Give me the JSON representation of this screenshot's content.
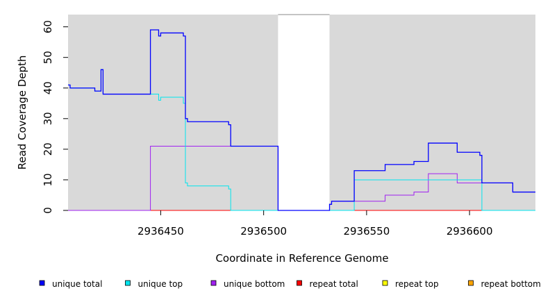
{
  "chart_data": {
    "type": "line",
    "xlabel": "Coordinate in Reference Genome",
    "ylabel": "Read Coverage Depth",
    "xlim": [
      2936405,
      2936632
    ],
    "ylim": [
      0,
      64
    ],
    "x_ticks": [
      2936450,
      2936500,
      2936550,
      2936600
    ],
    "y_ticks": [
      0,
      10,
      20,
      30,
      40,
      50,
      60
    ],
    "gap_region": [
      2936507,
      2936532
    ],
    "grid": false,
    "legend_position": "bottom",
    "series": [
      {
        "name": "unique total",
        "color": "#0000ff",
        "points": [
          [
            2936405,
            41
          ],
          [
            2936406,
            40
          ],
          [
            2936418,
            39
          ],
          [
            2936421,
            46
          ],
          [
            2936422,
            38
          ],
          [
            2936445,
            59
          ],
          [
            2936449,
            57
          ],
          [
            2936450,
            58
          ],
          [
            2936461,
            57
          ],
          [
            2936462,
            30
          ],
          [
            2936463,
            29
          ],
          [
            2936483,
            28
          ],
          [
            2936484,
            21
          ],
          [
            2936507,
            0
          ],
          [
            2936532,
            2
          ],
          [
            2936533,
            3
          ],
          [
            2936544,
            13
          ],
          [
            2936559,
            15
          ],
          [
            2936573,
            16
          ],
          [
            2936580,
            22
          ],
          [
            2936594,
            19
          ],
          [
            2936605,
            18
          ],
          [
            2936606,
            9
          ],
          [
            2936621,
            6
          ],
          [
            2936632,
            6
          ]
        ]
      },
      {
        "name": "unique top",
        "color": "#00e5ee",
        "points": [
          [
            2936405,
            41
          ],
          [
            2936406,
            40
          ],
          [
            2936418,
            39
          ],
          [
            2936421,
            46
          ],
          [
            2936422,
            38
          ],
          [
            2936444,
            38
          ],
          [
            2936449,
            36
          ],
          [
            2936450,
            37
          ],
          [
            2936461,
            35
          ],
          [
            2936462,
            9
          ],
          [
            2936463,
            8
          ],
          [
            2936483,
            7
          ],
          [
            2936484,
            0
          ],
          [
            2936544,
            10
          ],
          [
            2936606,
            0
          ],
          [
            2936632,
            0
          ]
        ]
      },
      {
        "name": "unique bottom",
        "color": "#a020f0",
        "points": [
          [
            2936405,
            0
          ],
          [
            2936445,
            21
          ],
          [
            2936507,
            0
          ],
          [
            2936532,
            2
          ],
          [
            2936533,
            3
          ],
          [
            2936559,
            5
          ],
          [
            2936573,
            6
          ],
          [
            2936580,
            12
          ],
          [
            2936594,
            9
          ],
          [
            2936606,
            9
          ],
          [
            2936621,
            6
          ],
          [
            2936632,
            6
          ]
        ]
      },
      {
        "name": "repeat total",
        "color": "#ff0000",
        "points": [
          [
            2936405,
            0
          ],
          [
            2936632,
            0
          ]
        ]
      },
      {
        "name": "repeat top",
        "color": "#ffff00",
        "points": [
          [
            2936405,
            0
          ],
          [
            2936632,
            0
          ]
        ]
      },
      {
        "name": "repeat bottom",
        "color": "#ffa500",
        "points": [
          [
            2936405,
            0
          ],
          [
            2936632,
            0
          ]
        ]
      }
    ]
  }
}
